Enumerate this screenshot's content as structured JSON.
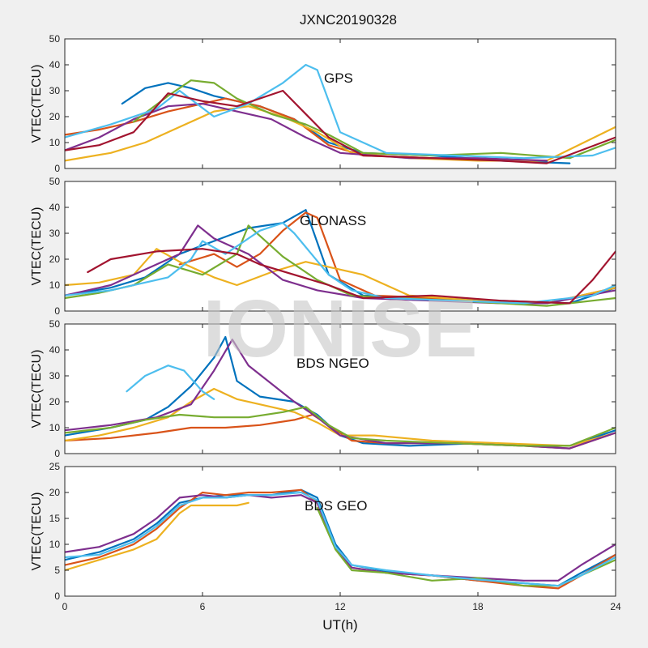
{
  "figure": {
    "title": "JXNC20190328",
    "xlabel": "UT(h)",
    "watermark": "IONISE"
  },
  "chart_data": [
    {
      "type": "line",
      "annotation": "GPS",
      "ylabel": "VTEC(TECU)",
      "xlim": [
        0,
        24
      ],
      "ylim": [
        0,
        50
      ],
      "xticks": [
        0,
        6,
        12,
        18,
        24
      ],
      "yticks": [
        0,
        10,
        20,
        30,
        40,
        50
      ],
      "series": [
        {
          "color": "#0072BD",
          "x": [
            2.5,
            3.5,
            4.5,
            5.5,
            6.5,
            7.5,
            8.5,
            10,
            11.5,
            13,
            16,
            19,
            22
          ],
          "y": [
            25,
            31,
            33,
            31,
            28,
            26,
            24,
            19,
            10,
            6,
            5,
            3,
            2
          ]
        },
        {
          "color": "#D95319",
          "x": [
            0,
            1.5,
            3,
            4.5,
            6,
            7,
            8.5,
            10,
            11.5,
            13,
            16,
            19,
            21
          ],
          "y": [
            13,
            15,
            18,
            22,
            25,
            27,
            24,
            19,
            9,
            5,
            4,
            3,
            3
          ]
        },
        {
          "color": "#EDB120",
          "x": [
            0,
            2,
            3.5,
            5,
            6.5,
            8,
            9.5,
            11,
            12.5,
            15,
            18,
            21,
            24
          ],
          "y": [
            3,
            6,
            10,
            16,
            22,
            24,
            20,
            14,
            6,
            4,
            3,
            3,
            16
          ]
        },
        {
          "color": "#7E2F8E",
          "x": [
            0,
            1.5,
            3,
            4.5,
            6,
            7.5,
            9,
            10.5,
            12,
            15,
            18,
            21
          ],
          "y": [
            7,
            12,
            19,
            24,
            25,
            22,
            19,
            12,
            6,
            4,
            4,
            3
          ]
        },
        {
          "color": "#77AC30",
          "x": [
            3,
            4.5,
            5.5,
            6.5,
            7.5,
            9,
            10.5,
            11.5,
            13,
            16,
            19,
            22,
            24
          ],
          "y": [
            18,
            28,
            34,
            33,
            27,
            21,
            17,
            13,
            6,
            5,
            6,
            4,
            11
          ]
        },
        {
          "color": "#4DBEEE",
          "x": [
            0,
            2,
            4,
            5,
            6.5,
            8,
            9.5,
            10.5,
            11,
            12,
            14,
            17,
            20,
            23,
            24
          ],
          "y": [
            12,
            17,
            23,
            30,
            20,
            25,
            33,
            40,
            38,
            14,
            6,
            5,
            4,
            5,
            8
          ]
        },
        {
          "color": "#A2142F",
          "x": [
            0,
            1.5,
            3,
            4.5,
            6,
            7.5,
            9.5,
            10.5,
            11.5,
            13,
            16,
            19,
            21,
            24
          ],
          "y": [
            7,
            9,
            14,
            29,
            26,
            24,
            30,
            21,
            12,
            5,
            4,
            3,
            2,
            12
          ]
        }
      ]
    },
    {
      "type": "line",
      "annotation": "GLONASS",
      "ylabel": "VTEC(TECU)",
      "xlim": [
        0,
        24
      ],
      "ylim": [
        0,
        50
      ],
      "xticks": [
        0,
        6,
        12,
        18,
        24
      ],
      "yticks": [
        0,
        10,
        20,
        30,
        40,
        50
      ],
      "series": [
        {
          "color": "#0072BD",
          "x": [
            0,
            2,
            3.5,
            5,
            6.5,
            8,
            9.5,
            10.5,
            11.5,
            13,
            16,
            19,
            22,
            24
          ],
          "y": [
            6,
            9,
            13,
            22,
            27,
            32,
            34,
            39,
            14,
            6,
            5,
            4,
            3,
            9
          ]
        },
        {
          "color": "#D95319",
          "x": [
            5,
            6.5,
            7.5,
            8.5,
            9.5,
            10.5,
            11,
            12,
            13.5,
            16,
            18,
            21,
            24
          ],
          "y": [
            18,
            22,
            17,
            22,
            31,
            38,
            36,
            12,
            6,
            5,
            4,
            3,
            9
          ]
        },
        {
          "color": "#EDB120",
          "x": [
            0,
            1.5,
            3,
            4,
            5,
            6.5,
            7.5,
            9,
            10.5,
            12,
            13,
            15,
            18,
            21,
            24
          ],
          "y": [
            10,
            11,
            14,
            24,
            19,
            13,
            10,
            15,
            19,
            16,
            14,
            6,
            4,
            3,
            9
          ]
        },
        {
          "color": "#7E2F8E",
          "x": [
            0,
            2,
            3.5,
            5,
            5.8,
            6.5,
            8,
            9.5,
            11,
            13,
            16,
            19,
            21,
            24
          ],
          "y": [
            6,
            10,
            16,
            22,
            33,
            28,
            22,
            12,
            8,
            5,
            4,
            3,
            3,
            8
          ]
        },
        {
          "color": "#77AC30",
          "x": [
            0,
            1.5,
            3,
            4.5,
            6,
            7.5,
            8,
            9.5,
            11,
            12.5,
            14.5,
            17,
            19,
            21,
            23,
            24
          ],
          "y": [
            5,
            7,
            10,
            18,
            14,
            22,
            33,
            21,
            12,
            6,
            5,
            4,
            3,
            2,
            4,
            5
          ]
        },
        {
          "color": "#4DBEEE",
          "x": [
            0,
            2,
            3.5,
            4.5,
            5.5,
            6,
            7,
            8.5,
            9.5,
            10,
            11.5,
            12.5,
            14,
            17,
            20,
            23,
            24
          ],
          "y": [
            6,
            8,
            11,
            13,
            20,
            27,
            22,
            31,
            34,
            30,
            14,
            8,
            5,
            4,
            3,
            6,
            10
          ]
        },
        {
          "color": "#A2142F",
          "x": [
            1,
            2,
            4,
            6,
            7.5,
            8.5,
            11.5,
            13,
            16,
            19,
            22,
            23,
            24
          ],
          "y": [
            15,
            20,
            23,
            24,
            22,
            18,
            10,
            5,
            6,
            4,
            3,
            12,
            23
          ]
        }
      ]
    },
    {
      "type": "line",
      "annotation": "BDS NGEO",
      "ylabel": "VTEC(TECU)",
      "xlim": [
        0,
        24
      ],
      "ylim": [
        0,
        50
      ],
      "xticks": [
        0,
        6,
        12,
        18,
        24
      ],
      "yticks": [
        0,
        10,
        20,
        30,
        40,
        50
      ],
      "series": [
        {
          "color": "#0072BD",
          "x": [
            0,
            2,
            3.5,
            4.5,
            5.5,
            6.5,
            7,
            7.5,
            8.5,
            10,
            11,
            12,
            13,
            15,
            18,
            21,
            22,
            24
          ],
          "y": [
            7,
            10,
            13,
            18,
            26,
            37,
            45,
            28,
            22,
            20,
            15,
            7,
            4,
            3,
            4,
            3,
            3,
            9
          ]
        },
        {
          "color": "#D95319",
          "x": [
            0,
            2,
            4,
            5.5,
            7,
            8.5,
            10,
            10.8,
            11.5,
            12.5,
            14,
            17,
            20,
            22,
            24
          ],
          "y": [
            5,
            6,
            8,
            10,
            10,
            11,
            13,
            15,
            11,
            5,
            4,
            4,
            3,
            2,
            8
          ]
        },
        {
          "color": "#EDB120",
          "x": [
            0,
            1.5,
            3,
            4.5,
            5.5,
            6.5,
            7.5,
            8.5,
            10,
            11,
            12,
            13.5,
            16,
            19,
            22,
            24
          ],
          "y": [
            5,
            7,
            10,
            14,
            20,
            25,
            21,
            19,
            16,
            12,
            7,
            7,
            5,
            4,
            3,
            8
          ]
        },
        {
          "color": "#7E2F8E",
          "x": [
            0,
            2,
            4,
            5.5,
            6.5,
            7.3,
            8,
            10,
            11,
            12,
            14,
            17,
            20,
            22,
            24
          ],
          "y": [
            9,
            11,
            14,
            19,
            32,
            44,
            34,
            20,
            14,
            7,
            4,
            4,
            3,
            2,
            8
          ]
        },
        {
          "color": "#77AC30",
          "x": [
            0,
            2,
            3.5,
            5,
            6.5,
            8,
            9.5,
            10.5,
            11.5,
            12.5,
            14,
            17,
            20,
            22,
            24
          ],
          "y": [
            8,
            10,
            13,
            15,
            14,
            14,
            16,
            18,
            11,
            6,
            5,
            4,
            3,
            3,
            10
          ]
        },
        {
          "color": "#4DBEEE",
          "x": [
            2.7,
            3.5,
            4.5,
            5.2,
            6,
            6.5
          ],
          "y": [
            24,
            30,
            34,
            32,
            24,
            21
          ]
        }
      ]
    },
    {
      "type": "line",
      "annotation": "BDS GEO",
      "ylabel": "VTEC(TECU)",
      "xlim": [
        0,
        24
      ],
      "ylim": [
        0,
        25
      ],
      "xticks": [
        0,
        6,
        12,
        18,
        24
      ],
      "yticks": [
        0,
        5,
        10,
        15,
        20,
        25
      ],
      "series": [
        {
          "color": "#0072BD",
          "x": [
            0,
            1.5,
            3,
            4,
            5,
            6,
            7,
            8,
            9,
            10.3,
            11,
            11.8,
            12.5,
            14,
            16,
            18,
            20,
            21.5,
            22.5,
            24
          ],
          "y": [
            7,
            8.5,
            11,
            14,
            18,
            19,
            19.5,
            19.5,
            19.5,
            20.5,
            19,
            10,
            6,
            4.8,
            4,
            3,
            2.5,
            2,
            4.5,
            8
          ]
        },
        {
          "color": "#D95319",
          "x": [
            0,
            1.5,
            3,
            4,
            5,
            6,
            7,
            8,
            9,
            10.3,
            11,
            11.8,
            12.5,
            14,
            16,
            18,
            20,
            21.5,
            22.5,
            24
          ],
          "y": [
            6,
            7.5,
            10,
            13,
            17,
            20,
            19.5,
            20,
            20,
            20.5,
            18,
            9,
            5.5,
            4.5,
            4,
            3,
            2,
            1.5,
            4,
            8
          ]
        },
        {
          "color": "#EDB120",
          "x": [
            0,
            1.5,
            3,
            4,
            5,
            5.5,
            6.5,
            7.5,
            8
          ],
          "y": [
            5,
            7,
            9,
            11,
            16,
            17.5,
            17.5,
            17.5,
            18
          ]
        },
        {
          "color": "#7E2F8E",
          "x": [
            0,
            1.5,
            3,
            4,
            5,
            6,
            7,
            8,
            9,
            10.3,
            11,
            11.8,
            12.5,
            14,
            16,
            18,
            20,
            21.5,
            22.5,
            24
          ],
          "y": [
            8.5,
            9.5,
            12,
            15,
            19,
            19.5,
            19,
            19.5,
            19,
            19.5,
            18,
            9.5,
            5.5,
            4.5,
            4,
            3.5,
            3,
            3,
            6,
            10
          ]
        },
        {
          "color": "#77AC30",
          "x": [
            11,
            11.8,
            12.5,
            14,
            16,
            18,
            20,
            21.5,
            22.5,
            24
          ],
          "y": [
            17,
            9,
            5,
            4.5,
            3,
            3.5,
            2,
            2,
            4,
            7
          ]
        },
        {
          "color": "#4DBEEE",
          "x": [
            0,
            1.5,
            3,
            4,
            5,
            6,
            7,
            8,
            9,
            10.3,
            11,
            11.8,
            12.5,
            14,
            16,
            18,
            20,
            21.5,
            22.5,
            24
          ],
          "y": [
            7.5,
            8,
            10.5,
            13.5,
            17.5,
            19,
            19,
            19.5,
            19.5,
            20,
            18.5,
            9.5,
            6,
            5,
            4,
            3.2,
            2.5,
            2,
            4,
            7.5
          ]
        }
      ]
    }
  ]
}
